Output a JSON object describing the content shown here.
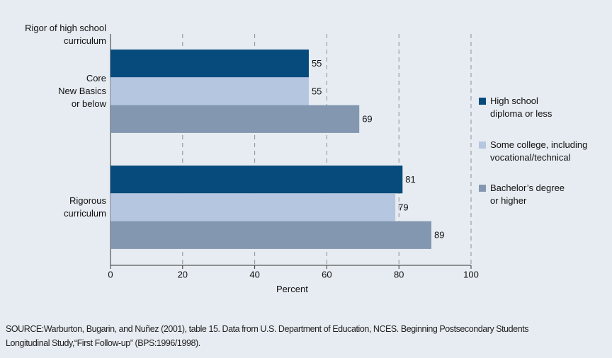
{
  "chart_data": {
    "type": "bar",
    "orientation": "horizontal",
    "y_axis_label": "Rigor of high school\ncurriculum",
    "x_axis_label": "Percent",
    "categories": [
      "Core\nNew Basics\nor below",
      "Rigorous\ncurriculum"
    ],
    "series": [
      {
        "name": "High school\ndiploma or less",
        "color": "#064b7c",
        "values": [
          55,
          81
        ]
      },
      {
        "name": "Some college, including\nvocational/technical",
        "color": "#b5c6e0",
        "values": [
          55,
          79
        ]
      },
      {
        "name": "Bachelor’s degree\nor higher",
        "color": "#8398b0",
        "values": [
          69,
          89
        ]
      }
    ],
    "xlim": [
      0,
      100
    ],
    "xticks": [
      0,
      20,
      40,
      60,
      80,
      100
    ],
    "grid": true,
    "legend": "right",
    "source": "SOURCE:Warburton, Bugarin, and Nuñez (2001), table 15. Data from U.S. Department of Education, NCES. Beginning Postsecondary Students\nLongitudinal Study,“First Follow-up” (BPS:1996/1998)."
  }
}
